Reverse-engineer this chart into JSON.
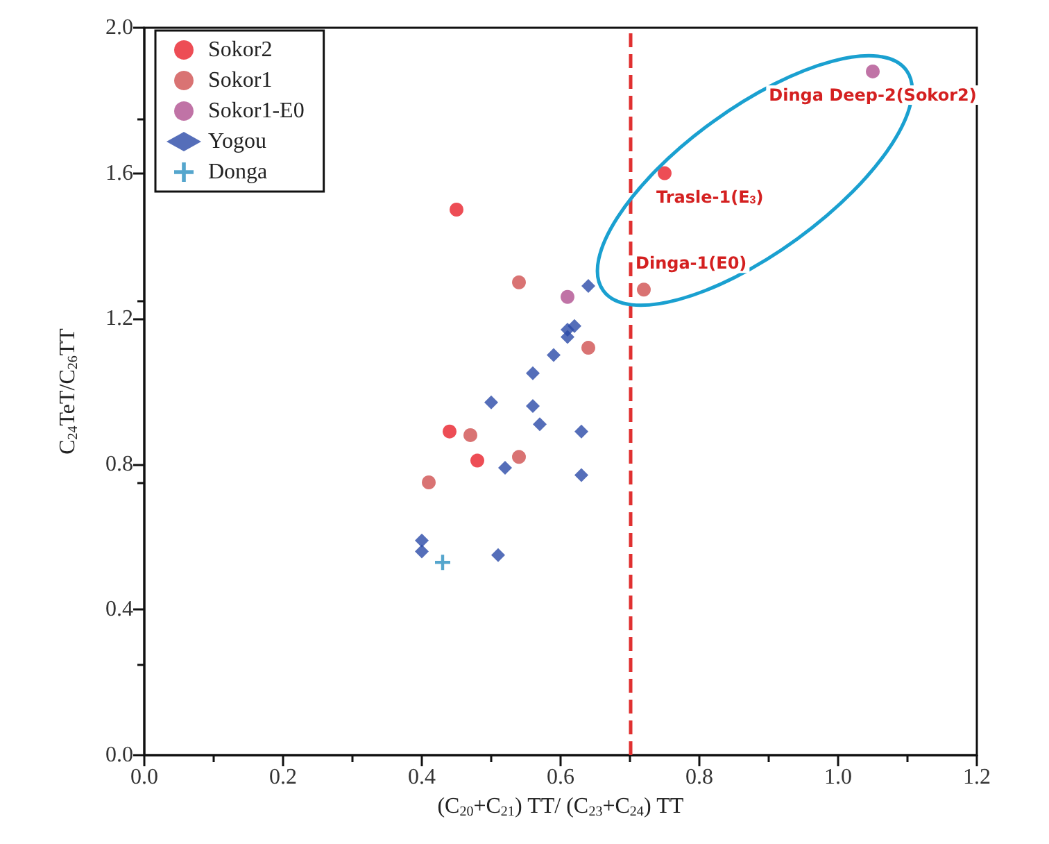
{
  "chart_data": {
    "type": "scatter",
    "xlabel": "(C$_{20}$+C$_{21}$) TT/ (C$_{23}$+C$_{24}$) TT",
    "ylabel": "C$_{24}$TeT/C$_{26}$TT",
    "xlim": [
      0,
      1.2
    ],
    "ylim": [
      0,
      2
    ],
    "xticks": [
      {
        "value": 0,
        "label": "0.0"
      },
      {
        "value": 0.2,
        "label": "0.2"
      },
      {
        "value": 0.4,
        "label": "0.4"
      },
      {
        "value": 0.6,
        "label": "0.6"
      },
      {
        "value": 0.8,
        "label": "0.8"
      },
      {
        "value": 1.0,
        "label": "1.0"
      },
      {
        "value": 1.2,
        "label": "1.2"
      }
    ],
    "yticks": [
      {
        "value": 0,
        "label": "0.0"
      },
      {
        "value": 0.4,
        "label": "0.4"
      },
      {
        "value": 0.8,
        "label": "0.8"
      },
      {
        "value": 1.2,
        "label": "1.2"
      },
      {
        "value": 1.6,
        "label": "1.6"
      },
      {
        "value": 2.0,
        "label": "2.0"
      }
    ],
    "grid": false,
    "legend": "top left",
    "series": [
      {
        "name": "Sokor2",
        "color": "#e8202a",
        "marker": "circle",
        "x": [
          0.45,
          0.44,
          0.48,
          0.75
        ],
        "values": [
          1.5,
          0.89,
          0.81,
          1.6
        ]
      },
      {
        "name": "Sokor1",
        "color": "#d05050",
        "marker": "circle",
        "x": [
          0.54,
          0.64,
          0.47,
          0.54,
          0.41,
          0.72
        ],
        "values": [
          1.3,
          1.12,
          0.88,
          0.82,
          0.75,
          1.28
        ]
      },
      {
        "name": "Sokor1-E0",
        "color": "#b05090",
        "marker": "circle",
        "x": [
          0.61,
          1.05
        ],
        "values": [
          1.26,
          1.88
        ]
      },
      {
        "name": "Yogou",
        "color": "#2a4aa8",
        "marker": "diamond",
        "x": [
          0.64,
          0.62,
          0.61,
          0.61,
          0.59,
          0.56,
          0.5,
          0.56,
          0.57,
          0.63,
          0.52,
          0.63,
          0.4,
          0.4,
          0.51
        ],
        "values": [
          1.29,
          1.18,
          1.17,
          1.15,
          1.1,
          1.05,
          0.97,
          0.96,
          0.91,
          0.89,
          0.79,
          0.77,
          0.59,
          0.56,
          0.55
        ]
      },
      {
        "name": "Donga",
        "color": "#2a90c0",
        "marker": "cross",
        "x": [
          0.43
        ],
        "values": [
          0.53
        ]
      }
    ],
    "ref_lines": [
      {
        "axis": "x",
        "value": 0.7,
        "color": "#e03030",
        "line_style": "dashed"
      }
    ],
    "annotations": [
      {
        "text": "Trasle-1(E$_{3}$)",
        "x": 0.75,
        "y": 1.6
      },
      {
        "text": "Dinga-1(E0)",
        "x": 0.72,
        "y": 1.28
      },
      {
        "text": "Dinga Deep-2(Sokor2)",
        "x": 1.05,
        "y": 1.88
      }
    ]
  }
}
